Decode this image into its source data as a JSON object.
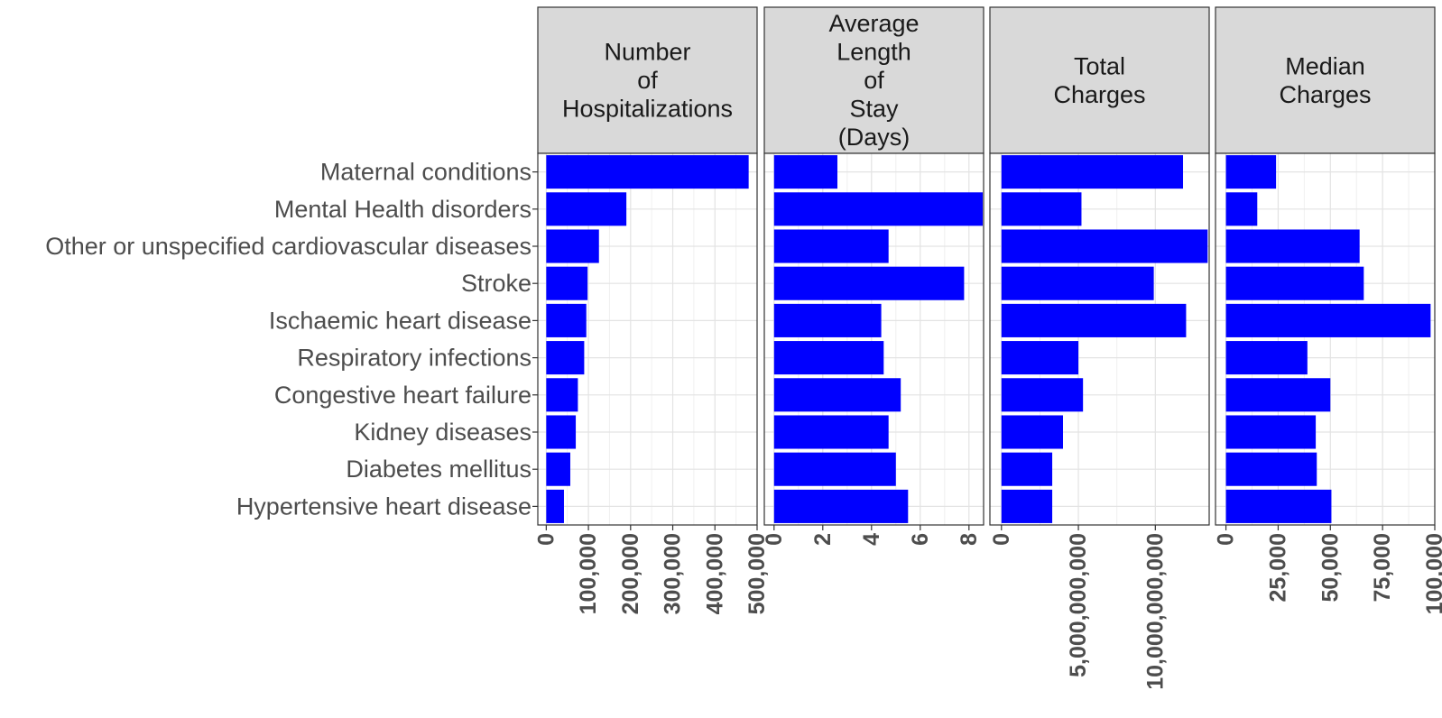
{
  "chart_data": {
    "type": "bar",
    "orientation": "horizontal",
    "layout": "faceted",
    "bar_color": "#0000ff",
    "strip_fill": "#d9d9d9",
    "grid": true,
    "categories": [
      "Maternal conditions",
      "Mental Health disorders",
      "Other or unspecified cardiovascular diseases",
      "Stroke",
      "Ischaemic heart disease",
      "Respiratory infections",
      "Congestive heart failure",
      "Kidney diseases",
      "Diabetes mellitus",
      "Hypertensive heart disease"
    ],
    "facets": [
      {
        "title_lines": [
          "Number",
          "of",
          "Hospitalizations"
        ],
        "xlim": [
          -20000,
          500000
        ],
        "ticks": [
          0,
          100000,
          200000,
          300000,
          400000,
          500000
        ],
        "tick_labels": [
          "0",
          "100,000",
          "200,000",
          "300,000",
          "400,000",
          "500,000"
        ],
        "values": [
          480000,
          190000,
          125000,
          98000,
          95000,
          90000,
          75000,
          70000,
          57000,
          42000
        ]
      },
      {
        "title_lines": [
          "Average",
          "Length",
          "of",
          "Stay",
          "(Days)"
        ],
        "xlim": [
          -0.4,
          8.6
        ],
        "ticks": [
          0,
          2,
          4,
          6,
          8
        ],
        "tick_labels": [
          "0",
          "2",
          "4",
          "6",
          "8"
        ],
        "values": [
          2.6,
          8.6,
          4.7,
          7.8,
          4.4,
          4.5,
          5.2,
          4.7,
          5.0,
          5.5
        ]
      },
      {
        "title_lines": [
          "Total",
          "Charges"
        ],
        "xlim": [
          -750000000,
          13500000000
        ],
        "ticks": [
          0,
          5000000000,
          10000000000
        ],
        "tick_labels": [
          "0",
          "5,000,000,000",
          "10,000,000,000"
        ],
        "values": [
          11800000000,
          5200000000,
          13400000000,
          9900000000,
          12000000000,
          5000000000,
          5300000000,
          4000000000,
          3300000000,
          3300000000
        ]
      },
      {
        "title_lines": [
          "Median",
          "Charges"
        ],
        "xlim": [
          -5000,
          100000
        ],
        "ticks": [
          0,
          25000,
          50000,
          75000,
          100000
        ],
        "tick_labels": [
          "0",
          "25,000",
          "50,000",
          "75,000",
          "100,000"
        ],
        "values": [
          24000,
          15000,
          64000,
          66000,
          98000,
          39000,
          50000,
          43000,
          43500,
          50500
        ]
      }
    ]
  }
}
